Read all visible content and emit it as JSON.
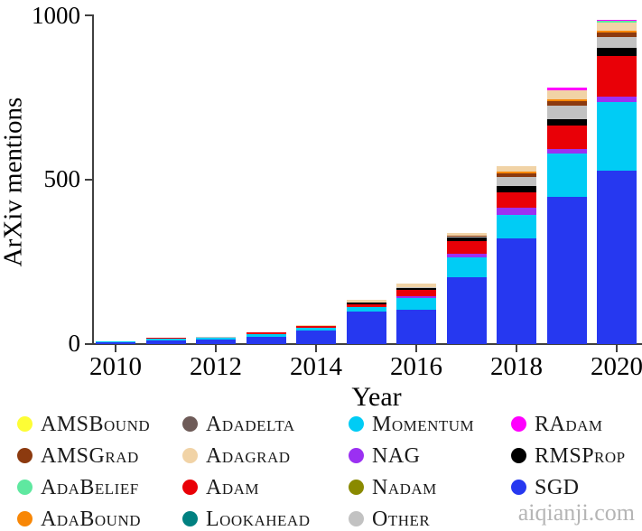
{
  "figure": {
    "ylabel": "ArXiv mentions",
    "xlabel": "Year",
    "watermark": "aiqianji.com"
  },
  "chart_data": {
    "type": "bar",
    "stacked": true,
    "title": "",
    "xlabel": "Year",
    "ylabel": "ArXiv mentions",
    "x": [
      2010,
      2011,
      2012,
      2013,
      2014,
      2015,
      2016,
      2017,
      2018,
      2019,
      2020
    ],
    "xtick_labels": [
      2010,
      2012,
      2014,
      2016,
      2018,
      2020
    ],
    "ytick_labels": [
      0,
      500,
      1000
    ],
    "ylim": [
      0,
      1000
    ],
    "grid": false,
    "legend_position": "bottom",
    "stack_order_note": "series listed bottom-to-top of stack",
    "series": [
      {
        "name": "SGD",
        "color": "#2638f0",
        "values": [
          4,
          10,
          13,
          22,
          40,
          98,
          103,
          203,
          321,
          448,
          527
        ]
      },
      {
        "name": "Momentum",
        "color": "#00ccf5",
        "values": [
          3,
          5,
          6,
          7,
          8,
          14,
          36,
          60,
          72,
          131,
          208
        ]
      },
      {
        "name": "NAG",
        "color": "#9b30f2",
        "values": [
          0,
          0,
          0,
          0,
          0,
          0,
          5,
          11,
          20,
          14,
          18
        ]
      },
      {
        "name": "Adam",
        "color": "#e90007",
        "values": [
          0,
          3,
          0,
          6,
          6,
          9,
          19,
          39,
          47,
          72,
          124
        ]
      },
      {
        "name": "RMSProp",
        "color": "#000000",
        "values": [
          0,
          0,
          0,
          0,
          0,
          4,
          6,
          10,
          19,
          19,
          23
        ]
      },
      {
        "name": "Other",
        "color": "#c2c2c2",
        "values": [
          0,
          0,
          3,
          0,
          0,
          0,
          3,
          4,
          28,
          41,
          34
        ]
      },
      {
        "name": "AMSGrad",
        "color": "#8c3a0f",
        "values": [
          0,
          0,
          0,
          0,
          0,
          0,
          0,
          2,
          13,
          14,
          14
        ]
      },
      {
        "name": "AdaBound",
        "color": "#f88706",
        "values": [
          0,
          0,
          0,
          0,
          0,
          0,
          0,
          0,
          4,
          6,
          6
        ]
      },
      {
        "name": "Adagrad",
        "color": "#f1d3a6",
        "values": [
          0,
          0,
          0,
          0,
          3,
          9,
          11,
          9,
          17,
          28,
          24
        ]
      },
      {
        "name": "AdaBelief",
        "color": "#5fe8a0",
        "values": [
          0,
          0,
          0,
          0,
          0,
          0,
          0,
          0,
          0,
          0,
          6
        ]
      },
      {
        "name": "RAdam",
        "color": "#ff00fe",
        "values": [
          0,
          0,
          0,
          0,
          0,
          0,
          0,
          0,
          0,
          8,
          3
        ]
      },
      {
        "name": "Adadelta",
        "color": "#6e5b58",
        "values": [
          0,
          0,
          0,
          0,
          0,
          0,
          0,
          0,
          0,
          0,
          0
        ]
      },
      {
        "name": "Lookahead",
        "color": "#008080",
        "values": [
          0,
          0,
          0,
          0,
          0,
          0,
          0,
          0,
          0,
          0,
          0
        ]
      },
      {
        "name": "Nadam",
        "color": "#8a8a00",
        "values": [
          0,
          0,
          0,
          0,
          0,
          0,
          0,
          0,
          0,
          0,
          0
        ]
      },
      {
        "name": "AMSBound",
        "color": "#fdfd35",
        "values": [
          0,
          0,
          0,
          0,
          0,
          0,
          0,
          0,
          0,
          0,
          0
        ]
      }
    ],
    "totals": [
      7,
      18,
      22,
      35,
      57,
      134,
      183,
      338,
      541,
      781,
      987
    ]
  },
  "legend": {
    "columns": [
      [
        {
          "label": "AMSBound",
          "color": "#fdfd35"
        },
        {
          "label": "AMSGrad",
          "color": "#8c3a0f"
        },
        {
          "label": "AdaBelief",
          "color": "#5fe8a0"
        },
        {
          "label": "AdaBound",
          "color": "#f88706"
        }
      ],
      [
        {
          "label": "Adadelta",
          "color": "#6e5b58"
        },
        {
          "label": "Adagrad",
          "color": "#f1d3a6"
        },
        {
          "label": "Adam",
          "color": "#e90007"
        },
        {
          "label": "Lookahead",
          "color": "#008080"
        }
      ],
      [
        {
          "label": "Momentum",
          "color": "#00ccf5"
        },
        {
          "label": "NAG",
          "color": "#9b30f2"
        },
        {
          "label": "Nadam",
          "color": "#8a8a00"
        },
        {
          "label": "Other",
          "color": "#c2c2c2"
        }
      ],
      [
        {
          "label": "RAdam",
          "color": "#ff00fe"
        },
        {
          "label": "RMSProp",
          "color": "#000000"
        },
        {
          "label": "SGD",
          "color": "#2638f0"
        }
      ]
    ]
  }
}
